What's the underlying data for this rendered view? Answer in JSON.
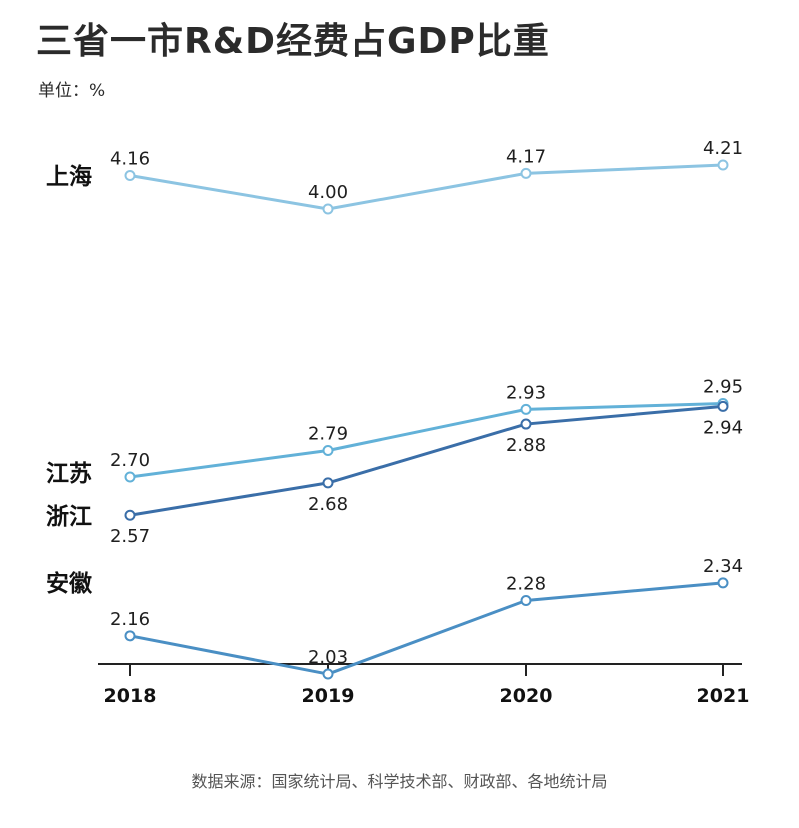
{
  "header": {
    "title": "三省一市R&D经费占GDP比重",
    "unit": "单位：%"
  },
  "footer": {
    "source": "数据来源：国家统计局、科学技术部、财政部、各地统计局"
  },
  "chart_data": {
    "type": "line",
    "title": "三省一市R&D经费占GDP比重",
    "ylabel": "%",
    "xlabel": "",
    "x": [
      "2018",
      "2019",
      "2020",
      "2021"
    ],
    "series": [
      {
        "name": "上海",
        "values": [
          4.16,
          4.0,
          4.17,
          4.21
        ],
        "labels": [
          "4.16",
          "4.00",
          "4.17",
          "4.21"
        ],
        "color": "#8cc4e2",
        "label_pos": [
          "above",
          "above",
          "above",
          "above"
        ]
      },
      {
        "name": "江苏",
        "values": [
          2.7,
          2.79,
          2.93,
          2.95
        ],
        "labels": [
          "2.70",
          "2.79",
          "2.93",
          "2.95"
        ],
        "color": "#62b1d8",
        "label_pos": [
          "above",
          "above",
          "above",
          "above"
        ]
      },
      {
        "name": "浙江",
        "values": [
          2.57,
          2.68,
          2.88,
          2.94
        ],
        "labels": [
          "2.57",
          "2.68",
          "2.88",
          "2.94"
        ],
        "color": "#3a6ea8",
        "label_pos": [
          "below",
          "below",
          "below",
          "below"
        ]
      },
      {
        "name": "安徽",
        "values": [
          2.16,
          2.03,
          2.28,
          2.34
        ],
        "labels": [
          "2.16",
          "2.03",
          "2.28",
          "2.34"
        ],
        "color": "#4a8fc4",
        "label_pos": [
          "above",
          "above",
          "above",
          "above"
        ]
      }
    ],
    "legend": "inline-left",
    "grid": false
  }
}
